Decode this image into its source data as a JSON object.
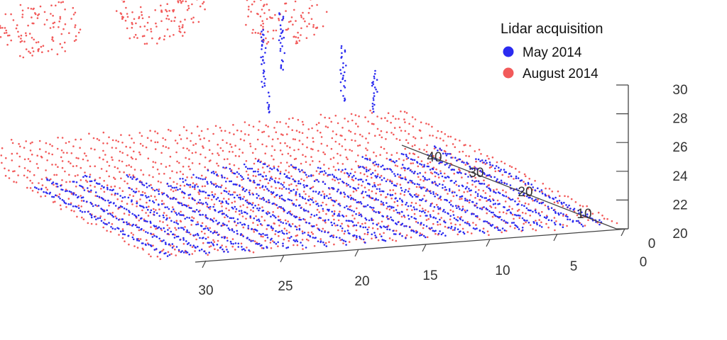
{
  "chart_data": {
    "type": "scatter",
    "projection": "3d",
    "title": "",
    "legend": {
      "title": "Lidar acquisition",
      "placement": "top-right",
      "entries": [
        {
          "label": "May 2014",
          "color": "#2b2bf0"
        },
        {
          "label": "August 2014",
          "color": "#f25a5a"
        }
      ]
    },
    "x_axis": {
      "ticks": [
        "30",
        "25",
        "20",
        "15",
        "10",
        "5",
        "0"
      ],
      "range": [
        0,
        32
      ]
    },
    "y_axis": {
      "ticks": [
        "40",
        "30",
        "20",
        "10",
        "0"
      ],
      "range": [
        0,
        45
      ]
    },
    "z_axis": {
      "ticks": [
        "30",
        "28",
        "26",
        "24",
        "22",
        "20"
      ],
      "range": [
        20,
        30
      ]
    },
    "series": [
      {
        "name": "August 2014",
        "color": "#f25a5a",
        "description_points": {
          "ground_scan_rows": {
            "x_range": [
              0,
              32
            ],
            "y_range": [
              0,
              44
            ],
            "z": 20.3,
            "rows": 29
          },
          "tree_crowns": [
            {
              "x": 26,
              "y": 42,
              "z_range": [
                27,
                30
              ]
            },
            {
              "x": 18,
              "y": 41,
              "z_range": [
                27,
                31
              ]
            },
            {
              "x": 9,
              "y": 40,
              "z_range": [
                27,
                31
              ]
            }
          ]
        }
      },
      {
        "name": "May 2014",
        "color": "#2b2bf0",
        "description_points": {
          "ground_scan_rows": {
            "x_range": [
              0,
              32
            ],
            "y_range": [
              0,
              30
            ],
            "z": 20.4,
            "rows": 23
          },
          "trunks": [
            {
              "x": 11,
              "y": 40,
              "z_range": [
                23,
                27
              ]
            },
            {
              "x": 9.5,
              "y": 40,
              "z_range": [
                24,
                28
              ]
            },
            {
              "x": 6,
              "y": 38,
              "z_range": [
                22,
                26
              ]
            },
            {
              "x": 4.5,
              "y": 36,
              "z_range": [
                22,
                25
              ]
            }
          ]
        }
      }
    ]
  }
}
